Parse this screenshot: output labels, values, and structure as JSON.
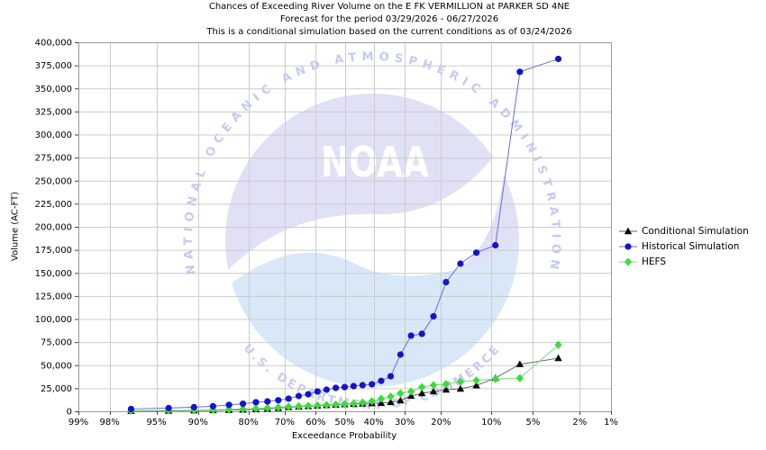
{
  "title": {
    "line1": "Chances of Exceeding River Volume on the E FK VERMILLION at PARKER SD 4NE",
    "line2": "Forecast for the period 03/29/2026 - 06/27/2026",
    "line3": "This is a conditional simulation based on the current conditions as of 03/24/2026"
  },
  "legend": {
    "position": "right",
    "items": [
      {
        "label": "Conditional Simulation",
        "marker": "triangle"
      },
      {
        "label": "Historical Simulation",
        "marker": "circle"
      },
      {
        "label": "HEFS",
        "marker": "diamond"
      }
    ]
  },
  "watermark": {
    "top_arc_text": "NATIONAL OCEANIC AND ATMOSPHERIC ADMINISTRATION",
    "bottom_arc_text": "U.S. DEPARTMENT OF COMMERCE",
    "center_text": "NOAA",
    "sky_color": "#e1e1f6",
    "sea_color": "#d9e8f8",
    "arc_text_color": "#c5cbed",
    "gull_color": "#ffffff"
  },
  "chart_data": {
    "type": "line",
    "title": "Chances of Exceeding River Volume on the E FK VERMILLION at PARKER SD 4NE",
    "xlabel": "Exceedance Probability",
    "ylabel": "Volume (AC-FT)",
    "x_scale": "probit-normal-probability-reversed",
    "grid": true,
    "legend_position": "right",
    "x_ticks": [
      99,
      98,
      95,
      90,
      80,
      70,
      60,
      50,
      40,
      30,
      20,
      10,
      5,
      2,
      1
    ],
    "x_tick_labels": [
      "99%",
      "98%",
      "95%",
      "90%",
      "80%",
      "70%",
      "60%",
      "50%",
      "40%",
      "30%",
      "20%",
      "10%",
      "5%",
      "2%",
      "1%"
    ],
    "ylim": [
      0,
      400000
    ],
    "y_ticks": [
      0,
      25000,
      50000,
      75000,
      100000,
      125000,
      150000,
      175000,
      200000,
      225000,
      250000,
      275000,
      300000,
      325000,
      350000,
      375000,
      400000
    ],
    "y_tick_labels": [
      "0",
      "25,000",
      "50,000",
      "75,000",
      "100,000",
      "125,000",
      "150,000",
      "175,000",
      "200,000",
      "225,000",
      "250,000",
      "275,000",
      "300,000",
      "325,000",
      "350,000",
      "375,000",
      "400,000"
    ],
    "x": [
      96.9,
      93.8,
      90.6,
      87.5,
      84.4,
      81.3,
      78.1,
      75.0,
      71.9,
      68.8,
      65.6,
      62.5,
      59.4,
      56.3,
      53.1,
      50.0,
      46.9,
      43.8,
      40.6,
      37.5,
      34.4,
      31.3,
      28.1,
      25.0,
      21.9,
      18.8,
      15.6,
      12.5,
      9.4,
      6.3,
      3.1
    ],
    "series": [
      {
        "name": "Conditional Simulation",
        "marker": "triangle",
        "marker_color": "#0a0a0a",
        "line_color": "#666666",
        "values": [
          300,
          500,
          800,
          1000,
          1300,
          1600,
          2000,
          2600,
          3400,
          4300,
          5000,
          5500,
          6000,
          6500,
          7000,
          7500,
          7900,
          8300,
          8600,
          8800,
          9800,
          11700,
          16600,
          19500,
          21500,
          23400,
          24400,
          28000,
          36000,
          51000,
          57500
        ]
      },
      {
        "name": "Historical Simulation",
        "marker": "circle",
        "marker_color": "#1414cc",
        "line_color": "#6b6bdb",
        "values": [
          2500,
          3500,
          4500,
          5500,
          7000,
          8200,
          9800,
          10700,
          12000,
          13700,
          16600,
          18500,
          21500,
          23400,
          25400,
          26300,
          27300,
          28300,
          29300,
          33000,
          38000,
          61500,
          82000,
          84000,
          103000,
          140000,
          160000,
          172000,
          180000,
          368000,
          382000
        ]
      },
      {
        "name": "HEFS",
        "marker": "diamond",
        "marker_color": "#3bdc3b",
        "line_color": "#7ed67e",
        "values": [
          600,
          900,
          1200,
          1600,
          2000,
          2500,
          3000,
          3600,
          4300,
          5000,
          5500,
          6000,
          6500,
          7000,
          7400,
          7800,
          8500,
          9500,
          11000,
          13700,
          16000,
          19500,
          21500,
          26300,
          28300,
          29500,
          32000,
          33500,
          35000,
          36000,
          72000
        ]
      }
    ]
  }
}
